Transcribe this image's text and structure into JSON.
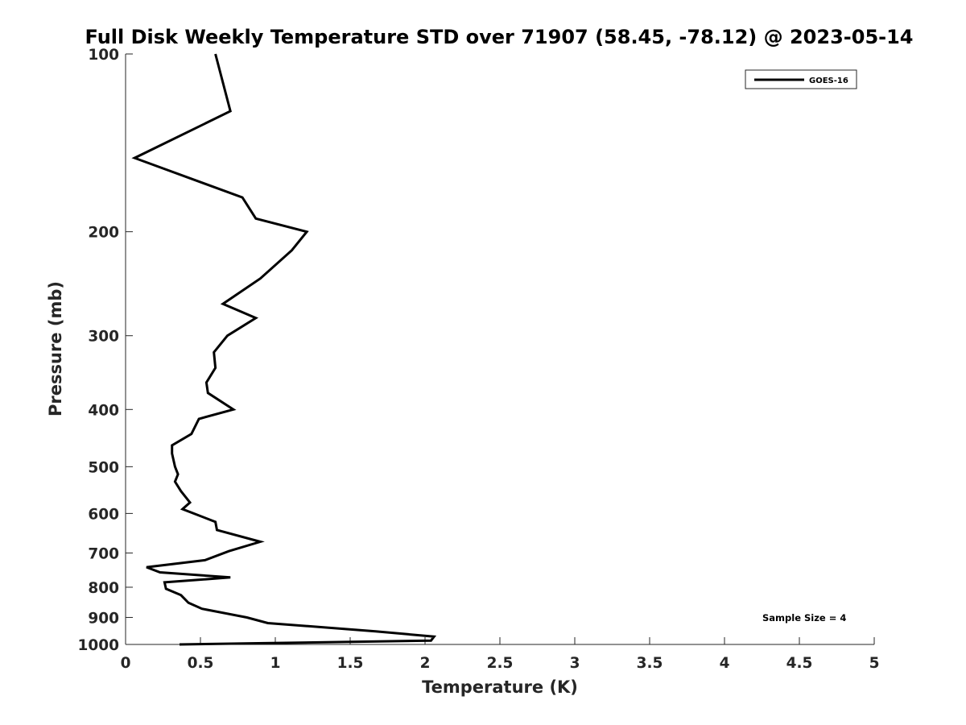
{
  "chart_data": {
    "type": "line",
    "title": "Full Disk Weekly Temperature STD over 71907 (58.45, -78.12) @ 2023-05-14",
    "xlabel": "Temperature (K)",
    "ylabel": "Pressure (mb)",
    "xlim": [
      0,
      5
    ],
    "ylim": [
      100,
      1000
    ],
    "y_scale": "log",
    "y_direction": "reversed",
    "x_ticks": [
      0,
      0.5,
      1,
      1.5,
      2,
      2.5,
      3,
      3.5,
      4,
      4.5,
      5
    ],
    "x_tick_labels": [
      "0",
      "0.5",
      "1",
      "1.5",
      "2",
      "2.5",
      "3",
      "3.5",
      "4",
      "4.5",
      "5"
    ],
    "y_ticks": [
      100,
      200,
      300,
      400,
      500,
      600,
      700,
      800,
      900,
      1000
    ],
    "y_tick_labels": [
      "100",
      "200",
      "300",
      "400",
      "500",
      "600",
      "700",
      "800",
      "900",
      "1000"
    ],
    "grid": false,
    "legend_position": "top-right",
    "annotation": "Sample Size = 4",
    "series": [
      {
        "name": "GOES-16",
        "color": "#000000",
        "x": [
          0.6,
          0.7,
          0.06,
          0.78,
          0.87,
          1.21,
          1.11,
          0.9,
          0.65,
          0.87,
          0.68,
          0.59,
          0.6,
          0.54,
          0.55,
          0.72,
          0.49,
          0.44,
          0.31,
          0.31,
          0.33,
          0.35,
          0.33,
          0.37,
          0.43,
          0.38,
          0.6,
          0.61,
          0.9,
          0.69,
          0.53,
          0.14,
          0.23,
          0.7,
          0.26,
          0.27,
          0.37,
          0.42,
          0.51,
          0.81,
          0.95,
          1.67,
          2.06,
          2.04,
          0.93,
          0.36
        ],
        "y": [
          100,
          125,
          150,
          175,
          190,
          200,
          215,
          240,
          265,
          280,
          300,
          320,
          340,
          360,
          375,
          400,
          415,
          440,
          460,
          475,
          500,
          515,
          530,
          550,
          575,
          590,
          620,
          640,
          670,
          695,
          720,
          740,
          755,
          770,
          785,
          805,
          825,
          850,
          870,
          900,
          920,
          950,
          970,
          985,
          995,
          1000
        ]
      }
    ]
  }
}
